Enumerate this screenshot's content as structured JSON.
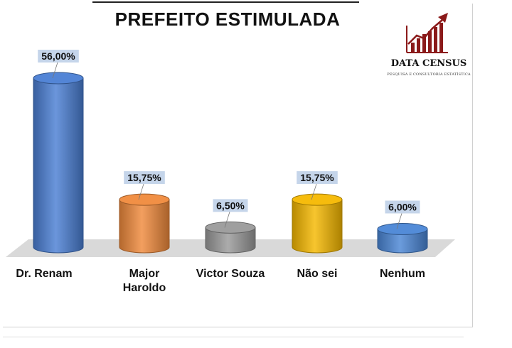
{
  "header": {
    "title": "PREFEITO ESTIMULADA"
  },
  "logo": {
    "name": "DATA CENSUS",
    "subtitle": "PESQUISA E CONSULTORIA ESTATÍSTICA",
    "icon": "bar-chart-arrow-icon",
    "color": "#8b1a1a"
  },
  "chart_data": {
    "type": "bar",
    "title": "PREFEITO ESTIMULADA",
    "categories": [
      "Dr. Renam",
      "Major Haroldo",
      "Victor Souza",
      "Não sei",
      "Nenhum"
    ],
    "category_lines": [
      [
        "Dr. Renam"
      ],
      [
        "Major",
        "Haroldo"
      ],
      [
        "Victor Souza"
      ],
      [
        "Não sei"
      ],
      [
        "Nenhum"
      ]
    ],
    "values": [
      56.0,
      15.75,
      6.5,
      15.75,
      6.0
    ],
    "labels": [
      "56,00%",
      "15,75%",
      "6,50%",
      "15,75%",
      "6,00%"
    ],
    "colors": [
      "#4a7fd4",
      "#f08a3c",
      "#9a9a9a",
      "#f5b800",
      "#4a86d6"
    ],
    "ylim": [
      0,
      56
    ],
    "grid": false,
    "legend": "none"
  }
}
